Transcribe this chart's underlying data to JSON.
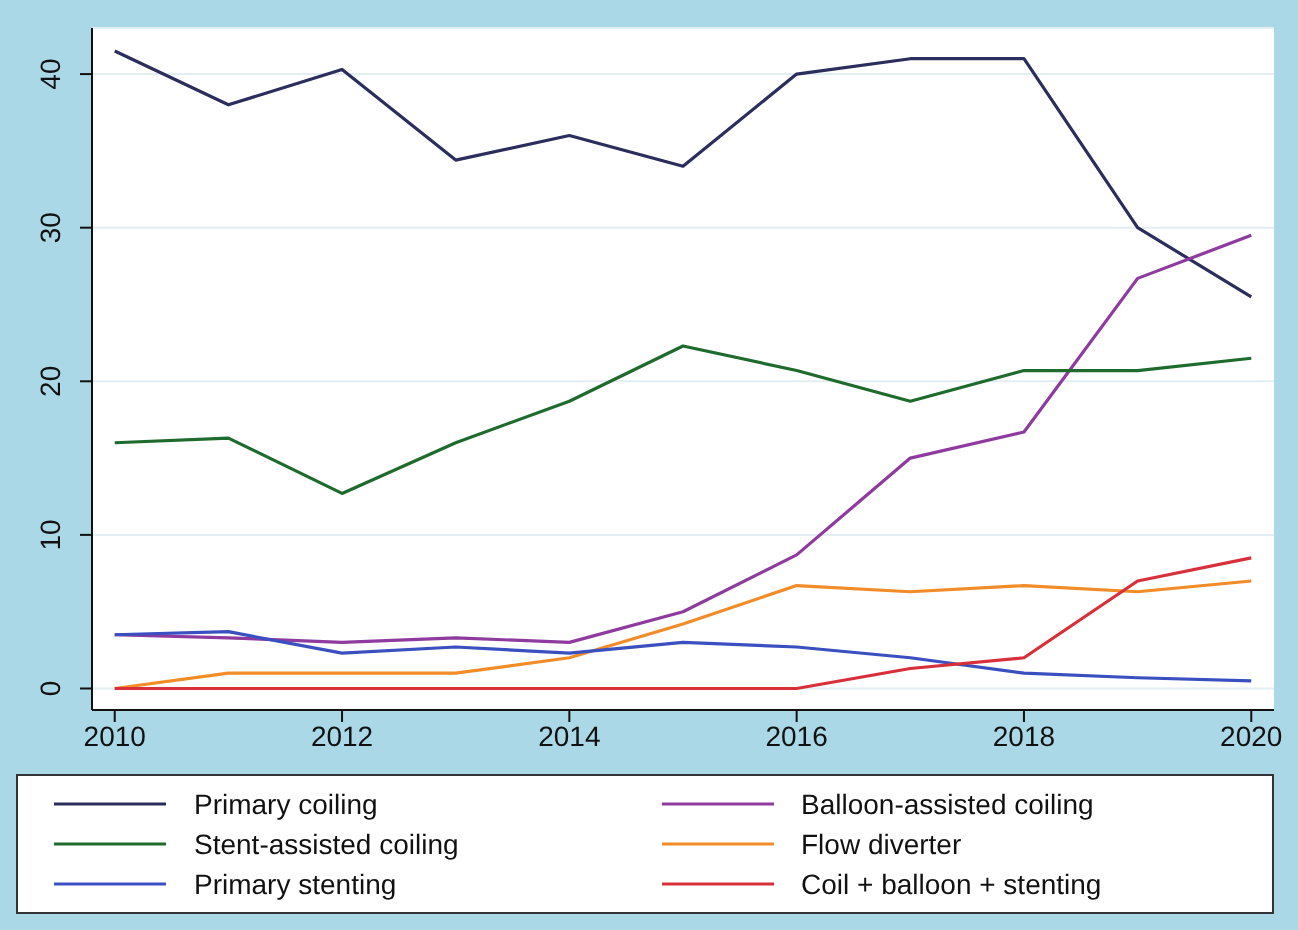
{
  "chart_data": {
    "type": "line",
    "x": [
      2010,
      2011,
      2012,
      2013,
      2014,
      2015,
      2016,
      2017,
      2018,
      2019,
      2020
    ],
    "series": [
      {
        "name": "Primary coiling",
        "color": "#2b2d5c",
        "values": [
          41.5,
          38,
          40.3,
          34.4,
          36,
          34,
          40,
          41,
          41,
          30,
          25.5
        ]
      },
      {
        "name": "Balloon-assisted coiling",
        "color": "#8e3a9e",
        "values": [
          3.5,
          3.3,
          3,
          3.3,
          3,
          5,
          8.7,
          15,
          16.7,
          26.7,
          29.5
        ]
      },
      {
        "name": "Stent-assisted coiling",
        "color": "#1f6b2e",
        "values": [
          16,
          16.3,
          12.7,
          16,
          18.7,
          22.3,
          20.7,
          18.7,
          20.7,
          20.7,
          21.5
        ]
      },
      {
        "name": "Flow diverter",
        "color": "#f28c28",
        "values": [
          0,
          1,
          1,
          1,
          2,
          4.2,
          6.7,
          6.3,
          6.7,
          6.3,
          7
        ]
      },
      {
        "name": "Primary stenting",
        "color": "#3a4fc0",
        "values": [
          3.5,
          3.7,
          2.3,
          2.7,
          2.3,
          3,
          2.7,
          2,
          1,
          0.7,
          0.5
        ]
      },
      {
        "name": "Coil + balloon + stenting",
        "color": "#d8303a",
        "values": [
          0,
          0,
          0,
          0,
          0,
          0,
          0,
          1.3,
          2,
          7,
          8.5
        ]
      }
    ],
    "xlim": [
      2009.8,
      2020.2
    ],
    "xticks": [
      2010,
      2012,
      2014,
      2016,
      2018,
      2020
    ],
    "ylim": [
      -1.4,
      43
    ],
    "yticks": [
      0,
      10,
      20,
      30,
      40
    ],
    "grid": "y",
    "legend": "bottom",
    "marker": "none",
    "line_style": "solid"
  }
}
